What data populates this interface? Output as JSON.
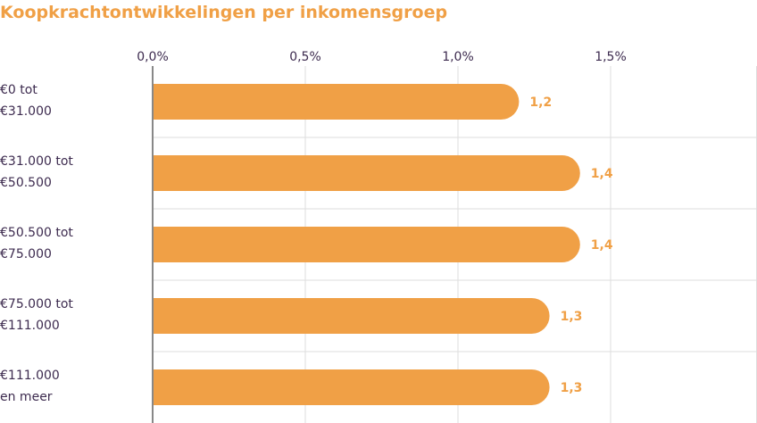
{
  "chart_data": {
    "type": "bar",
    "orientation": "horizontal",
    "title": "Koopkrachtontwikkelingen per inkomensgroep",
    "categories": [
      [
        "€0 tot",
        "€31.000"
      ],
      [
        "€31.000 tot",
        "€50.500"
      ],
      [
        "€50.500 tot",
        "€75.000"
      ],
      [
        "€75.000 tot",
        "€111.000"
      ],
      [
        "€111.000",
        "en meer"
      ]
    ],
    "values": [
      1.2,
      1.4,
      1.4,
      1.3,
      1.3
    ],
    "value_labels": [
      "1,2",
      "1,4",
      "1,4",
      "1,3",
      "1,3"
    ],
    "x_ticks": [
      0,
      0.5,
      1.0,
      1.5
    ],
    "x_tick_labels": [
      "0,0%",
      "0,5%",
      "1,0%",
      "1,5%"
    ],
    "xlim": [
      0,
      2.0
    ],
    "grid": true,
    "bar_color": "#f0a046",
    "text_color": "#3d2b4f",
    "grid_color": "#dddddd",
    "axis_color": "#888888"
  }
}
